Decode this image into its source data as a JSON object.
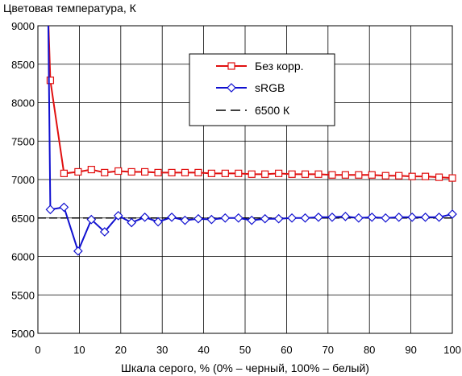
{
  "chart_data": {
    "type": "line",
    "title": "",
    "ylabel": "Цветовая температура, К",
    "xlabel": "Шкала серого, % (0% – черный, 100% – белый)",
    "xlim": [
      0,
      100
    ],
    "ylim": [
      5000,
      9000
    ],
    "x_ticks": [
      0,
      10,
      20,
      30,
      40,
      50,
      60,
      70,
      80,
      90,
      100
    ],
    "y_ticks": [
      5000,
      5500,
      6000,
      6500,
      7000,
      7500,
      8000,
      8500,
      9000
    ],
    "grid": true,
    "legend": {
      "position": "top-right"
    },
    "x_points": [
      2.5,
      3,
      6.3,
      9.7,
      12.9,
      16.1,
      19.4,
      22.6,
      25.8,
      29,
      32.3,
      35.5,
      38.7,
      41.9,
      45.2,
      48.4,
      51.6,
      54.8,
      58.1,
      61.3,
      64.5,
      67.7,
      71,
      74.2,
      77.4,
      80.6,
      83.9,
      87.1,
      90.3,
      93.5,
      96.8,
      100
    ],
    "series": [
      {
        "name": "Без корр.",
        "color": "#e01010",
        "marker": "square",
        "dash": "solid",
        "values": [
          9100,
          8290,
          7080,
          7100,
          7130,
          7090,
          7110,
          7100,
          7100,
          7090,
          7090,
          7090,
          7090,
          7080,
          7080,
          7080,
          7070,
          7070,
          7080,
          7070,
          7070,
          7070,
          7060,
          7060,
          7060,
          7060,
          7050,
          7050,
          7040,
          7040,
          7030,
          7020
        ]
      },
      {
        "name": "sRGB",
        "color": "#1010d0",
        "marker": "diamond",
        "dash": "solid",
        "values": [
          9100,
          6610,
          6640,
          6070,
          6480,
          6320,
          6530,
          6440,
          6510,
          6450,
          6510,
          6470,
          6490,
          6480,
          6500,
          6500,
          6470,
          6490,
          6490,
          6500,
          6500,
          6510,
          6510,
          6520,
          6500,
          6510,
          6500,
          6510,
          6510,
          6510,
          6510,
          6550
        ]
      },
      {
        "name": "6500 К",
        "color": "#000000",
        "marker": "none",
        "dash": "dashed",
        "values": [
          6500,
          6500
        ]
      }
    ]
  }
}
